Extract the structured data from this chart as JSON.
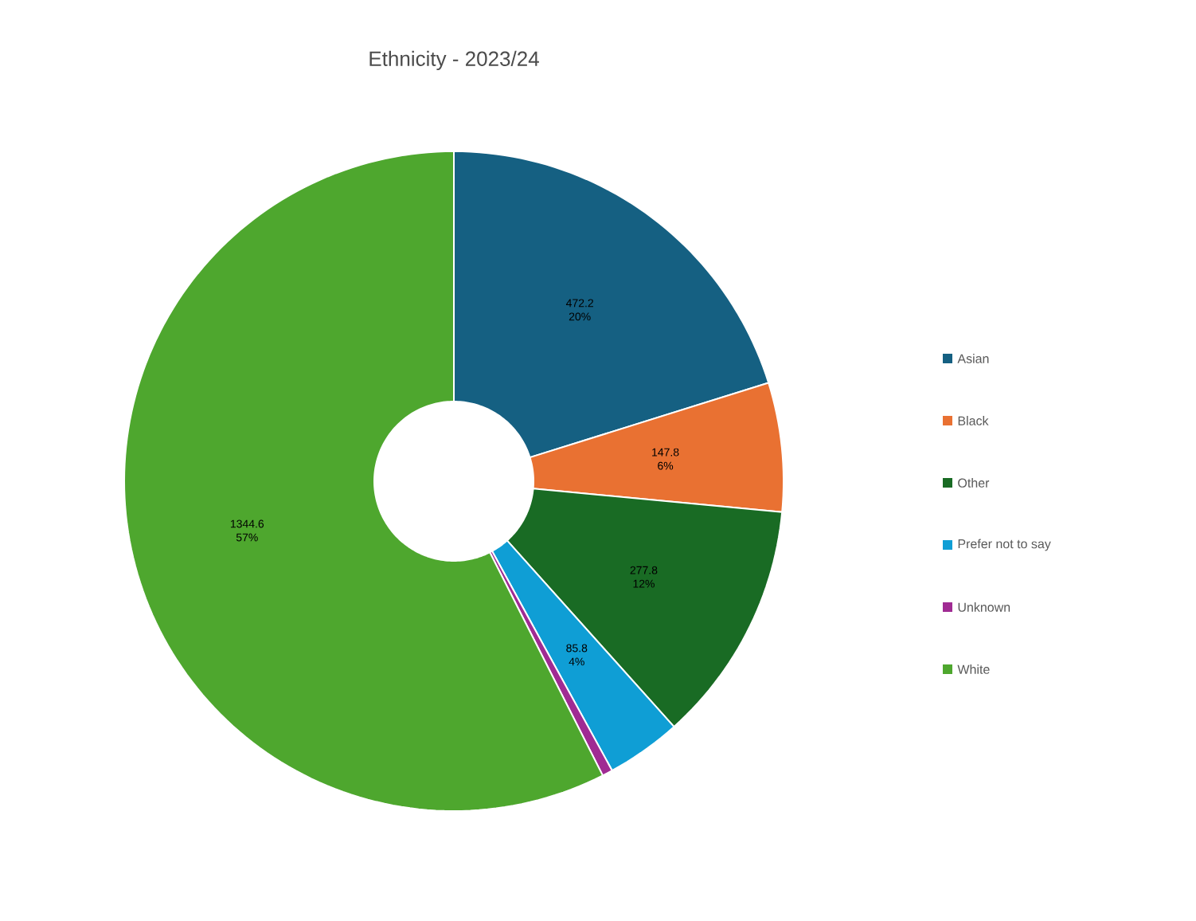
{
  "chart_data": {
    "type": "donut",
    "title": "Ethnicity - 2023/24",
    "categories": [
      "Asian",
      "Black",
      "Other",
      "Prefer not to say",
      "Unknown",
      "White"
    ],
    "values": [
      472.2,
      147.8,
      277.8,
      85.8,
      12,
      1344.6
    ],
    "colors": [
      "#156082",
      "#e97132",
      "#196b24",
      "#0f9ed5",
      "#a02b93",
      "#4ea72e"
    ],
    "value_labels": [
      "472.2 20%",
      "147.8 6%",
      "277.8 12%",
      "85.8 4%",
      null,
      "1344.6 57%"
    ],
    "legend": "right"
  }
}
